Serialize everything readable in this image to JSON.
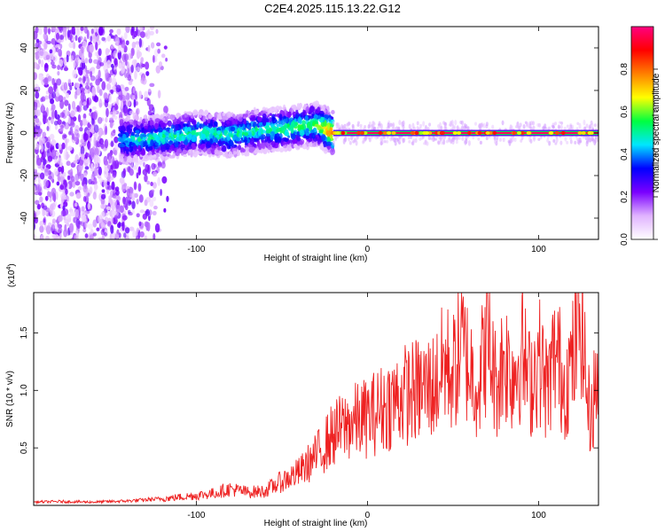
{
  "title": "C2E4.2025.115.13.22.G12",
  "chart_data": [
    {
      "type": "heatmap",
      "xlabel": "Height of straight line (km)",
      "ylabel": "Frequency (Hz)",
      "xlim": [
        -195,
        135
      ],
      "ylim": [
        -50,
        50
      ],
      "xticks": [
        -100,
        0,
        100
      ],
      "yticks": [
        -40,
        -20,
        0,
        20,
        40
      ],
      "colorbar": {
        "label": "Normalized spectral amplitude",
        "range": [
          0.0,
          1.0
        ],
        "ticks": [
          0.0,
          0.2,
          0.4,
          0.6,
          0.8
        ],
        "tick_labels": [
          "0.0",
          "0.2",
          "0.4",
          "0.6",
          "0.8"
        ],
        "colormap": [
          "#ffffff",
          "#e0b3ff",
          "#7a00ff",
          "#0000ff",
          "#00e6ff",
          "#00ff40",
          "#ffff00",
          "#ff8000",
          "#ff0000",
          "#ff0080"
        ]
      },
      "ridge": [
        {
          "x": -140,
          "y": -3,
          "a": 0.45
        },
        {
          "x": -120,
          "y": -2,
          "a": 0.5
        },
        {
          "x": -100,
          "y": 0,
          "a": 0.5
        },
        {
          "x": -80,
          "y": -1,
          "a": 0.5
        },
        {
          "x": -65,
          "y": 1,
          "a": 0.5
        },
        {
          "x": -50,
          "y": 2,
          "a": 0.55
        },
        {
          "x": -40,
          "y": 3,
          "a": 0.55
        },
        {
          "x": -30,
          "y": 4,
          "a": 0.55
        },
        {
          "x": -20,
          "y": 0,
          "a": 0.9
        },
        {
          "x": 0,
          "y": 0,
          "a": 0.95
        },
        {
          "x": 50,
          "y": 0,
          "a": 0.95
        },
        {
          "x": 100,
          "y": 0,
          "a": 0.95
        },
        {
          "x": 135,
          "y": 0,
          "a": 0.95
        }
      ]
    },
    {
      "type": "line",
      "xlabel": "Height of straight line (km)",
      "ylabel": "SNR (10 * v/v)",
      "yscale_label": "(x10",
      "yscale_exp": "4",
      "xlim": [
        -195,
        135
      ],
      "ylim": [
        0,
        18500
      ],
      "xticks": [
        -100,
        0,
        100
      ],
      "yticks": [
        5000,
        10000,
        15000
      ],
      "ytick_labels": [
        "0.5",
        "1.0",
        "1.5"
      ],
      "color": "#ee2222",
      "series": [
        {
          "x": [
            -195,
            -180,
            -160,
            -140,
            -120,
            -100,
            -90,
            -80,
            -70,
            -60,
            -50,
            -40,
            -30,
            -20,
            -10,
            0,
            10,
            20,
            30,
            40,
            45,
            50,
            55,
            60,
            65,
            70,
            75,
            80,
            85,
            90,
            95,
            100,
            105,
            110,
            115,
            120,
            125,
            128,
            130,
            133,
            135
          ],
          "y": [
            300,
            350,
            300,
            400,
            600,
            900,
            1100,
            1500,
            1200,
            1300,
            2200,
            3000,
            4500,
            6500,
            7500,
            8000,
            9000,
            10000,
            10500,
            11000,
            13000,
            12000,
            14500,
            12500,
            11000,
            15500,
            11000,
            13500,
            12000,
            14000,
            11000,
            13500,
            10500,
            14000,
            11000,
            13000,
            18000,
            10500,
            8000,
            10500,
            12000
          ]
        }
      ]
    }
  ]
}
